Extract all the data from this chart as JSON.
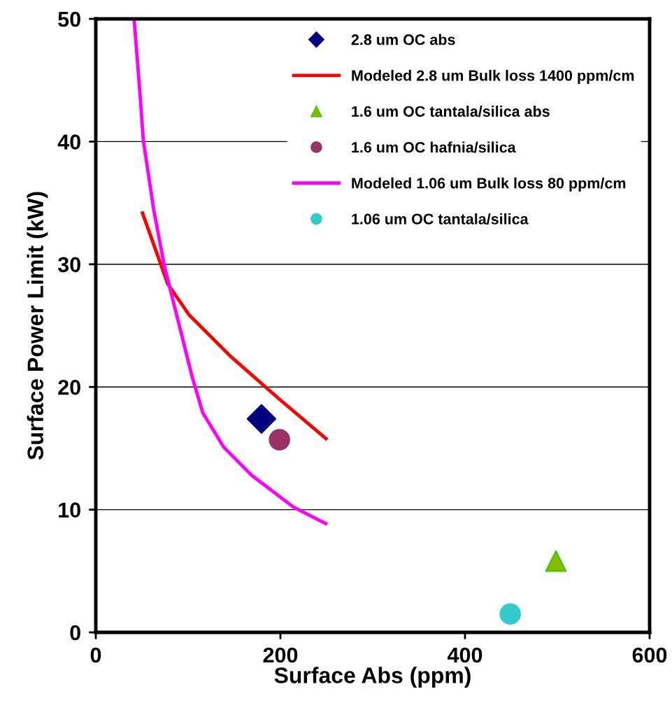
{
  "chart_data": {
    "type": "scatter",
    "xlabel": "Surface Abs (ppm)",
    "ylabel": "Surface Power Limit (kW)",
    "xlim": [
      0,
      600
    ],
    "xticks": [
      0,
      200,
      400,
      600
    ],
    "ylim": [
      0,
      50
    ],
    "yticks": [
      0,
      10,
      20,
      30,
      40,
      50
    ],
    "grid": "y",
    "legend": "top right",
    "series": [
      {
        "name": "2.8 um OC abs",
        "marker": "diamond",
        "color": "#000080",
        "x": [
          179.5
        ],
        "values": [
          17.4
        ]
      },
      {
        "name": "Modeled 2.8 um Bulk loss 1400 ppm/cm",
        "type": "line",
        "color": "#ff0000",
        "x": [
          50,
          78,
          100.8,
          146,
          199,
          250.8
        ],
        "values": [
          34.3,
          28.4,
          25.9,
          22.5,
          19.0,
          15.7
        ]
      },
      {
        "name": "1.6 um OC tantala/silica abs",
        "marker": "triangle",
        "color": "#88bb00",
        "x": [
          498.5
        ],
        "values": [
          5.8
        ]
      },
      {
        "name": "1.6 um OC hafnia/silica",
        "marker": "circle",
        "color": "#993366",
        "x": [
          199
        ],
        "values": [
          15.7
        ]
      },
      {
        "name": "Modeled 1.06 um Bulk loss 80 ppm/cm",
        "type": "line",
        "color": "#ff00ff",
        "x": [
          41.5,
          47.7,
          51.5,
          62.9,
          74.2,
          93.2,
          104.5,
          115.9,
          138.6,
          168.9,
          214.4,
          250.8
        ],
        "values": [
          50,
          44.1,
          40.1,
          34.4,
          29.9,
          24.2,
          20.8,
          17.9,
          15.1,
          12.8,
          10.2,
          8.8
        ]
      },
      {
        "name": "1.06 um OC tantala/silica",
        "marker": "circle",
        "color": "#33cccc",
        "x": [
          449
        ],
        "values": [
          1.5
        ]
      }
    ]
  }
}
